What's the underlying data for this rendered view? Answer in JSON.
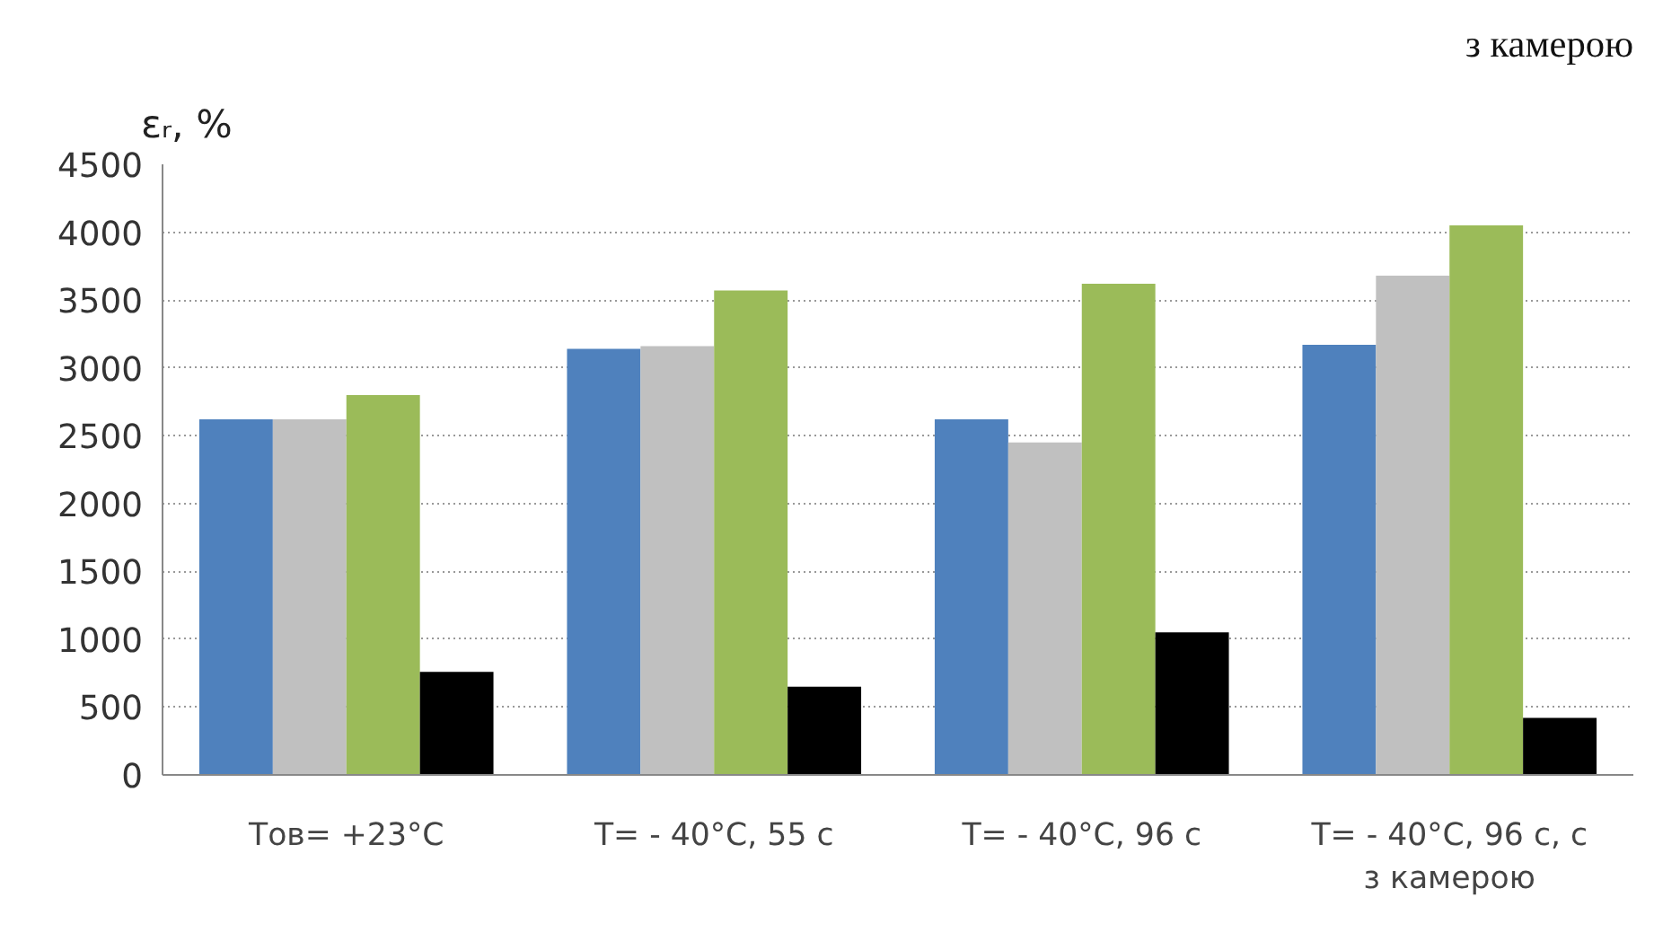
{
  "chart_data": {
    "type": "bar",
    "ylabel": "εᵣ, %",
    "categories": [
      "Тов= +23°C",
      "T= - 40°C, 55 с",
      "T= - 40°C, 96 с",
      "T= - 40°C, 96 с, с\nз камерою"
    ],
    "series": [
      {
        "color": "#4f81bd",
        "values": [
          2620,
          3140,
          2620,
          3170
        ]
      },
      {
        "color": "#c0c0c0",
        "values": [
          2620,
          3160,
          2450,
          3680
        ]
      },
      {
        "color": "#9bbb59",
        "values": [
          2800,
          3570,
          3620,
          4050
        ]
      },
      {
        "color": "#000000",
        "values": [
          760,
          650,
          1050,
          420
        ]
      }
    ],
    "ylim": [
      0,
      4500
    ],
    "yticks": [
      0,
      500,
      1000,
      1500,
      2000,
      2500,
      3000,
      3500,
      4000,
      4500
    ],
    "grid": "y",
    "annotations": [
      "з камерою"
    ]
  }
}
